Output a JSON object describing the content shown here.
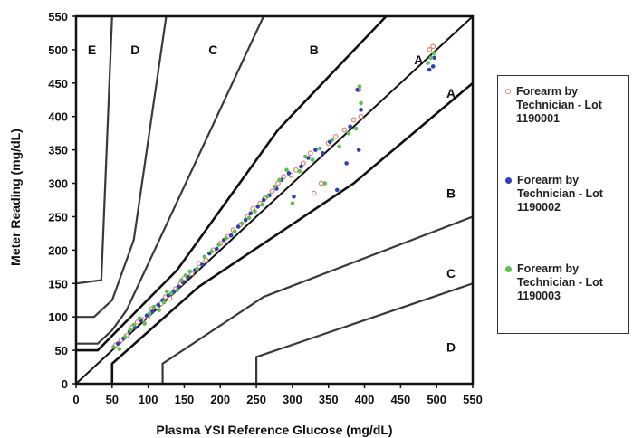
{
  "chart_data": {
    "type": "scatter",
    "title": "",
    "xlabel": "Plasma YSI Reference Glucose (mg/dL)",
    "ylabel": "Meter Reading (mg/dL)",
    "xlim": [
      0,
      550
    ],
    "ylim": [
      0,
      550
    ],
    "x_ticks": [
      "0",
      "50",
      "100",
      "150",
      "200",
      "250",
      "300",
      "350",
      "400",
      "450",
      "500",
      "550"
    ],
    "y_ticks": [
      "0",
      "50",
      "100",
      "150",
      "200",
      "250",
      "300",
      "350",
      "400",
      "450",
      "500",
      "550"
    ],
    "grid": false,
    "legend_position": "right",
    "identity_line": [
      [
        0,
        0
      ],
      [
        550,
        550
      ]
    ],
    "zone_boundaries": [
      {
        "name": "A/B upper",
        "points": [
          [
            0,
            50
          ],
          [
            30,
            50
          ],
          [
            140,
            170
          ],
          [
            280,
            380
          ],
          [
            430,
            550
          ]
        ]
      },
      {
        "name": "A/B lower",
        "points": [
          [
            50,
            0
          ],
          [
            50,
            30
          ],
          [
            170,
            145
          ],
          [
            385,
            300
          ],
          [
            550,
            450
          ]
        ]
      },
      {
        "name": "B/C upper",
        "points": [
          [
            0,
            60
          ],
          [
            30,
            60
          ],
          [
            50,
            80
          ],
          [
            70,
            110
          ],
          [
            260,
            550
          ]
        ]
      },
      {
        "name": "B/C lower",
        "points": [
          [
            120,
            0
          ],
          [
            120,
            30
          ],
          [
            260,
            130
          ],
          [
            550,
            250
          ]
        ]
      },
      {
        "name": "C/D upper",
        "points": [
          [
            0,
            100
          ],
          [
            25,
            100
          ],
          [
            50,
            125
          ],
          [
            80,
            215
          ],
          [
            125,
            550
          ]
        ]
      },
      {
        "name": "C/D lower",
        "points": [
          [
            250,
            0
          ],
          [
            250,
            40
          ],
          [
            550,
            150
          ]
        ]
      },
      {
        "name": "D/E",
        "points": [
          [
            0,
            150
          ],
          [
            35,
            155
          ],
          [
            50,
            550
          ]
        ]
      }
    ],
    "zone_labels": [
      {
        "text": "E",
        "x": 22,
        "y": 500
      },
      {
        "text": "D",
        "x": 82,
        "y": 500
      },
      {
        "text": "C",
        "x": 190,
        "y": 500
      },
      {
        "text": "B",
        "x": 330,
        "y": 500
      },
      {
        "text": "A",
        "x": 475,
        "y": 485
      },
      {
        "text": "A",
        "x": 520,
        "y": 435
      },
      {
        "text": "B",
        "x": 520,
        "y": 285
      },
      {
        "text": "C",
        "x": 520,
        "y": 165
      },
      {
        "text": "D",
        "x": 520,
        "y": 55
      }
    ],
    "series": [
      {
        "name": "Forearm by Technician - Lot 1190001",
        "color": "#e08070",
        "marker": "hollow-circle",
        "points": [
          [
            55,
            58
          ],
          [
            62,
            65
          ],
          [
            70,
            72
          ],
          [
            78,
            85
          ],
          [
            85,
            92
          ],
          [
            92,
            96
          ],
          [
            100,
            100
          ],
          [
            105,
            112
          ],
          [
            112,
            115
          ],
          [
            118,
            120
          ],
          [
            124,
            130
          ],
          [
            130,
            128
          ],
          [
            138,
            142
          ],
          [
            145,
            150
          ],
          [
            150,
            158
          ],
          [
            160,
            165
          ],
          [
            170,
            180
          ],
          [
            180,
            185
          ],
          [
            190,
            200
          ],
          [
            200,
            210
          ],
          [
            210,
            220
          ],
          [
            218,
            230
          ],
          [
            228,
            238
          ],
          [
            238,
            250
          ],
          [
            245,
            262
          ],
          [
            255,
            270
          ],
          [
            262,
            278
          ],
          [
            272,
            288
          ],
          [
            280,
            300
          ],
          [
            288,
            310
          ],
          [
            298,
            312
          ],
          [
            305,
            320
          ],
          [
            315,
            330
          ],
          [
            325,
            345
          ],
          [
            330,
            285
          ],
          [
            340,
            300
          ],
          [
            350,
            360
          ],
          [
            360,
            370
          ],
          [
            372,
            380
          ],
          [
            385,
            395
          ],
          [
            392,
            440
          ],
          [
            395,
            400
          ],
          [
            490,
            500
          ],
          [
            495,
            505
          ]
        ]
      },
      {
        "name": "Forearm by Technician - Lot 1190002",
        "color": "#3040b8",
        "marker": "dot",
        "points": [
          [
            58,
            60
          ],
          [
            66,
            68
          ],
          [
            74,
            78
          ],
          [
            82,
            84
          ],
          [
            90,
            95
          ],
          [
            98,
            102
          ],
          [
            106,
            108
          ],
          [
            114,
            118
          ],
          [
            120,
            125
          ],
          [
            128,
            132
          ],
          [
            135,
            138
          ],
          [
            142,
            145
          ],
          [
            148,
            152
          ],
          [
            155,
            160
          ],
          [
            165,
            170
          ],
          [
            175,
            178
          ],
          [
            185,
            195
          ],
          [
            195,
            202
          ],
          [
            205,
            215
          ],
          [
            215,
            222
          ],
          [
            225,
            235
          ],
          [
            235,
            245
          ],
          [
            242,
            255
          ],
          [
            252,
            265
          ],
          [
            260,
            275
          ],
          [
            268,
            282
          ],
          [
            278,
            292
          ],
          [
            285,
            305
          ],
          [
            295,
            315
          ],
          [
            302,
            280
          ],
          [
            312,
            325
          ],
          [
            322,
            338
          ],
          [
            332,
            350
          ],
          [
            342,
            345
          ],
          [
            352,
            362
          ],
          [
            362,
            290
          ],
          [
            375,
            330
          ],
          [
            380,
            385
          ],
          [
            390,
            440
          ],
          [
            392,
            350
          ],
          [
            395,
            410
          ],
          [
            490,
            470
          ],
          [
            495,
            475
          ],
          [
            497,
            488
          ]
        ]
      },
      {
        "name": "Forearm by Technician - Lot 1190003",
        "color": "#5cc050",
        "marker": "dot",
        "points": [
          [
            52,
            55
          ],
          [
            60,
            52
          ],
          [
            68,
            70
          ],
          [
            75,
            80
          ],
          [
            80,
            88
          ],
          [
            88,
            98
          ],
          [
            95,
            90
          ],
          [
            102,
            105
          ],
          [
            108,
            115
          ],
          [
            115,
            110
          ],
          [
            122,
            122
          ],
          [
            126,
            138
          ],
          [
            132,
            135
          ],
          [
            140,
            140
          ],
          [
            146,
            155
          ],
          [
            152,
            162
          ],
          [
            158,
            168
          ],
          [
            168,
            172
          ],
          [
            178,
            190
          ],
          [
            188,
            198
          ],
          [
            198,
            208
          ],
          [
            208,
            218
          ],
          [
            220,
            228
          ],
          [
            230,
            240
          ],
          [
            240,
            248
          ],
          [
            248,
            258
          ],
          [
            258,
            268
          ],
          [
            265,
            280
          ],
          [
            275,
            295
          ],
          [
            282,
            305
          ],
          [
            292,
            320
          ],
          [
            300,
            270
          ],
          [
            310,
            318
          ],
          [
            318,
            340
          ],
          [
            328,
            335
          ],
          [
            338,
            352
          ],
          [
            345,
            300
          ],
          [
            355,
            365
          ],
          [
            365,
            355
          ],
          [
            378,
            375
          ],
          [
            388,
            382
          ],
          [
            393,
            445
          ],
          [
            395,
            420
          ],
          [
            488,
            480
          ],
          [
            492,
            488
          ],
          [
            496,
            495
          ]
        ]
      }
    ]
  }
}
